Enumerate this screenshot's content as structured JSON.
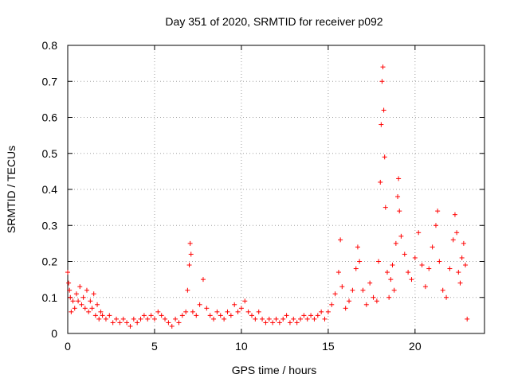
{
  "chart_data": {
    "type": "scatter",
    "title": "Day 351 of 2020, SRMTID for receiver p092",
    "xlabel": "GPS time / hours",
    "ylabel": "SRMTID / TECUs",
    "xlim": [
      0,
      24
    ],
    "ylim": [
      0,
      0.8
    ],
    "xticks": [
      "0",
      "5",
      "10",
      "15",
      "20"
    ],
    "yticks": [
      "0",
      "0.1",
      "0.2",
      "0.3",
      "0.4",
      "0.5",
      "0.6",
      "0.7",
      "0.8"
    ],
    "grid": true,
    "marker": "plus",
    "series": [
      {
        "name": "SRMTID",
        "color": "#ff0000",
        "marker": "plus",
        "points": [
          [
            0.0,
            0.17
          ],
          [
            0.05,
            0.14
          ],
          [
            0.1,
            0.12
          ],
          [
            0.15,
            0.1
          ],
          [
            0.2,
            0.06
          ],
          [
            0.3,
            0.09
          ],
          [
            0.4,
            0.07
          ],
          [
            0.5,
            0.11
          ],
          [
            0.6,
            0.09
          ],
          [
            0.7,
            0.13
          ],
          [
            0.8,
            0.08
          ],
          [
            0.9,
            0.1
          ],
          [
            1.0,
            0.07
          ],
          [
            1.1,
            0.12
          ],
          [
            1.2,
            0.06
          ],
          [
            1.3,
            0.09
          ],
          [
            1.4,
            0.07
          ],
          [
            1.5,
            0.11
          ],
          [
            1.6,
            0.05
          ],
          [
            1.7,
            0.08
          ],
          [
            1.8,
            0.04
          ],
          [
            1.9,
            0.06
          ],
          [
            2.0,
            0.05
          ],
          [
            2.2,
            0.04
          ],
          [
            2.4,
            0.05
          ],
          [
            2.6,
            0.03
          ],
          [
            2.8,
            0.04
          ],
          [
            3.0,
            0.03
          ],
          [
            3.2,
            0.04
          ],
          [
            3.4,
            0.03
          ],
          [
            3.6,
            0.02
          ],
          [
            3.8,
            0.04
          ],
          [
            4.0,
            0.03
          ],
          [
            4.2,
            0.04
          ],
          [
            4.4,
            0.05
          ],
          [
            4.6,
            0.04
          ],
          [
            4.8,
            0.05
          ],
          [
            5.0,
            0.04
          ],
          [
            5.2,
            0.06
          ],
          [
            5.4,
            0.05
          ],
          [
            5.6,
            0.04
          ],
          [
            5.8,
            0.03
          ],
          [
            6.0,
            0.02
          ],
          [
            6.2,
            0.04
          ],
          [
            6.4,
            0.03
          ],
          [
            6.6,
            0.05
          ],
          [
            6.8,
            0.06
          ],
          [
            6.9,
            0.12
          ],
          [
            7.0,
            0.19
          ],
          [
            7.05,
            0.25
          ],
          [
            7.1,
            0.22
          ],
          [
            7.2,
            0.06
          ],
          [
            7.4,
            0.05
          ],
          [
            7.6,
            0.08
          ],
          [
            7.8,
            0.15
          ],
          [
            8.0,
            0.07
          ],
          [
            8.2,
            0.05
          ],
          [
            8.4,
            0.04
          ],
          [
            8.6,
            0.06
          ],
          [
            8.8,
            0.05
          ],
          [
            9.0,
            0.04
          ],
          [
            9.2,
            0.06
          ],
          [
            9.4,
            0.05
          ],
          [
            9.6,
            0.08
          ],
          [
            9.8,
            0.06
          ],
          [
            10.0,
            0.07
          ],
          [
            10.2,
            0.09
          ],
          [
            10.4,
            0.06
          ],
          [
            10.6,
            0.05
          ],
          [
            10.8,
            0.04
          ],
          [
            11.0,
            0.06
          ],
          [
            11.2,
            0.04
          ],
          [
            11.4,
            0.03
          ],
          [
            11.6,
            0.04
          ],
          [
            11.8,
            0.03
          ],
          [
            12.0,
            0.04
          ],
          [
            12.2,
            0.03
          ],
          [
            12.4,
            0.04
          ],
          [
            12.6,
            0.05
          ],
          [
            12.8,
            0.03
          ],
          [
            13.0,
            0.04
          ],
          [
            13.2,
            0.03
          ],
          [
            13.4,
            0.04
          ],
          [
            13.6,
            0.05
          ],
          [
            13.8,
            0.04
          ],
          [
            14.0,
            0.05
          ],
          [
            14.2,
            0.04
          ],
          [
            14.4,
            0.05
          ],
          [
            14.6,
            0.06
          ],
          [
            14.8,
            0.04
          ],
          [
            15.0,
            0.06
          ],
          [
            15.2,
            0.08
          ],
          [
            15.4,
            0.11
          ],
          [
            15.6,
            0.17
          ],
          [
            15.7,
            0.26
          ],
          [
            15.8,
            0.13
          ],
          [
            16.0,
            0.07
          ],
          [
            16.2,
            0.09
          ],
          [
            16.4,
            0.12
          ],
          [
            16.6,
            0.18
          ],
          [
            16.7,
            0.24
          ],
          [
            16.8,
            0.2
          ],
          [
            17.0,
            0.12
          ],
          [
            17.2,
            0.08
          ],
          [
            17.4,
            0.14
          ],
          [
            17.6,
            0.1
          ],
          [
            17.8,
            0.09
          ],
          [
            17.9,
            0.2
          ],
          [
            18.0,
            0.42
          ],
          [
            18.05,
            0.58
          ],
          [
            18.1,
            0.7
          ],
          [
            18.15,
            0.74
          ],
          [
            18.2,
            0.62
          ],
          [
            18.25,
            0.49
          ],
          [
            18.3,
            0.35
          ],
          [
            18.4,
            0.17
          ],
          [
            18.5,
            0.1
          ],
          [
            18.6,
            0.15
          ],
          [
            18.7,
            0.19
          ],
          [
            18.8,
            0.12
          ],
          [
            18.9,
            0.25
          ],
          [
            19.0,
            0.38
          ],
          [
            19.05,
            0.43
          ],
          [
            19.1,
            0.34
          ],
          [
            19.2,
            0.27
          ],
          [
            19.4,
            0.22
          ],
          [
            19.6,
            0.17
          ],
          [
            19.8,
            0.15
          ],
          [
            20.0,
            0.21
          ],
          [
            20.2,
            0.28
          ],
          [
            20.4,
            0.19
          ],
          [
            20.6,
            0.13
          ],
          [
            20.8,
            0.18
          ],
          [
            21.0,
            0.24
          ],
          [
            21.2,
            0.3
          ],
          [
            21.3,
            0.34
          ],
          [
            21.4,
            0.2
          ],
          [
            21.6,
            0.12
          ],
          [
            21.8,
            0.1
          ],
          [
            22.0,
            0.18
          ],
          [
            22.2,
            0.26
          ],
          [
            22.3,
            0.33
          ],
          [
            22.4,
            0.28
          ],
          [
            22.5,
            0.17
          ],
          [
            22.6,
            0.14
          ],
          [
            22.7,
            0.21
          ],
          [
            22.8,
            0.25
          ],
          [
            22.9,
            0.19
          ],
          [
            23.0,
            0.04
          ]
        ]
      }
    ]
  }
}
